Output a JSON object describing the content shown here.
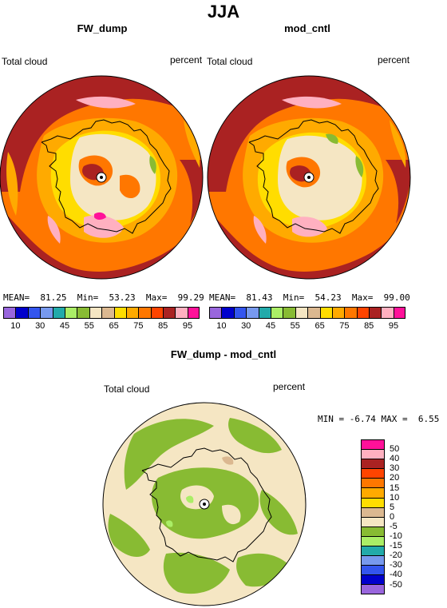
{
  "season": "JJA",
  "panels": [
    {
      "title": "FW_dump",
      "var_label": "Total cloud",
      "unit_label": "percent",
      "stats": {
        "mean_label": "MEAN=",
        "mean": "81.25",
        "min_label": "Min=",
        "min": "53.23",
        "max_label": "Max=",
        "max": "99.29"
      }
    },
    {
      "title": "mod_cntl",
      "var_label": "Total cloud",
      "unit_label": "percent",
      "stats": {
        "mean_label": "MEAN=",
        "mean": "81.43",
        "min_label": "Min=",
        "min": "54.23",
        "max_label": "Max=",
        "max": "99.00"
      }
    }
  ],
  "diff_panel": {
    "title": "FW_dump - mod_cntl",
    "var_label": "Total cloud",
    "unit_label": "percent",
    "stats": {
      "min_label": "MIN =",
      "min": "-6.74",
      "max_label": "MAX =",
      "max": "6.55"
    }
  },
  "abs_colorbar": {
    "colors": [
      "#9966dd",
      "#0000cc",
      "#3355ee",
      "#7799ee",
      "#22aaaa",
      "#aaee66",
      "#88bb33",
      "#f5e6c3",
      "#dbb890",
      "#ffdd00",
      "#ffaa00",
      "#ff7700",
      "#ff4400",
      "#aa2222",
      "#ffb0c0",
      "#ff1199"
    ],
    "tick_labels": [
      "10",
      "30",
      "45",
      "55",
      "65",
      "75",
      "85",
      "95"
    ]
  },
  "diff_colorbar": {
    "colors": [
      "#ff1199",
      "#ffb0c0",
      "#aa2222",
      "#ff4400",
      "#ff7700",
      "#ffaa00",
      "#ffdd00",
      "#dbb890",
      "#f5e6c3",
      "#88bb33",
      "#aaee66",
      "#22aaaa",
      "#7799ee",
      "#3355ee",
      "#0000cc",
      "#9966dd"
    ],
    "tick_labels": [
      "50",
      "40",
      "30",
      "20",
      "15",
      "10",
      "5",
      "0",
      "-5",
      "-10",
      "-15",
      "-20",
      "-30",
      "-40",
      "-50"
    ]
  },
  "colors": {
    "land_outline": "#000000",
    "abs_base": "#ff7700",
    "abs_outer": "#aa2222",
    "abs_ring": "#ffaa00",
    "abs_mid": "#ffdd00",
    "abs_inner": "#f5e6c3",
    "abs_pink": "#ffb0c0",
    "abs_magenta": "#ff1199",
    "abs_green": "#88bb33",
    "diff_base": "#f5e6c3",
    "diff_green": "#88bb33",
    "diff_light": "#aaee66",
    "diff_tan": "#dbb890"
  }
}
